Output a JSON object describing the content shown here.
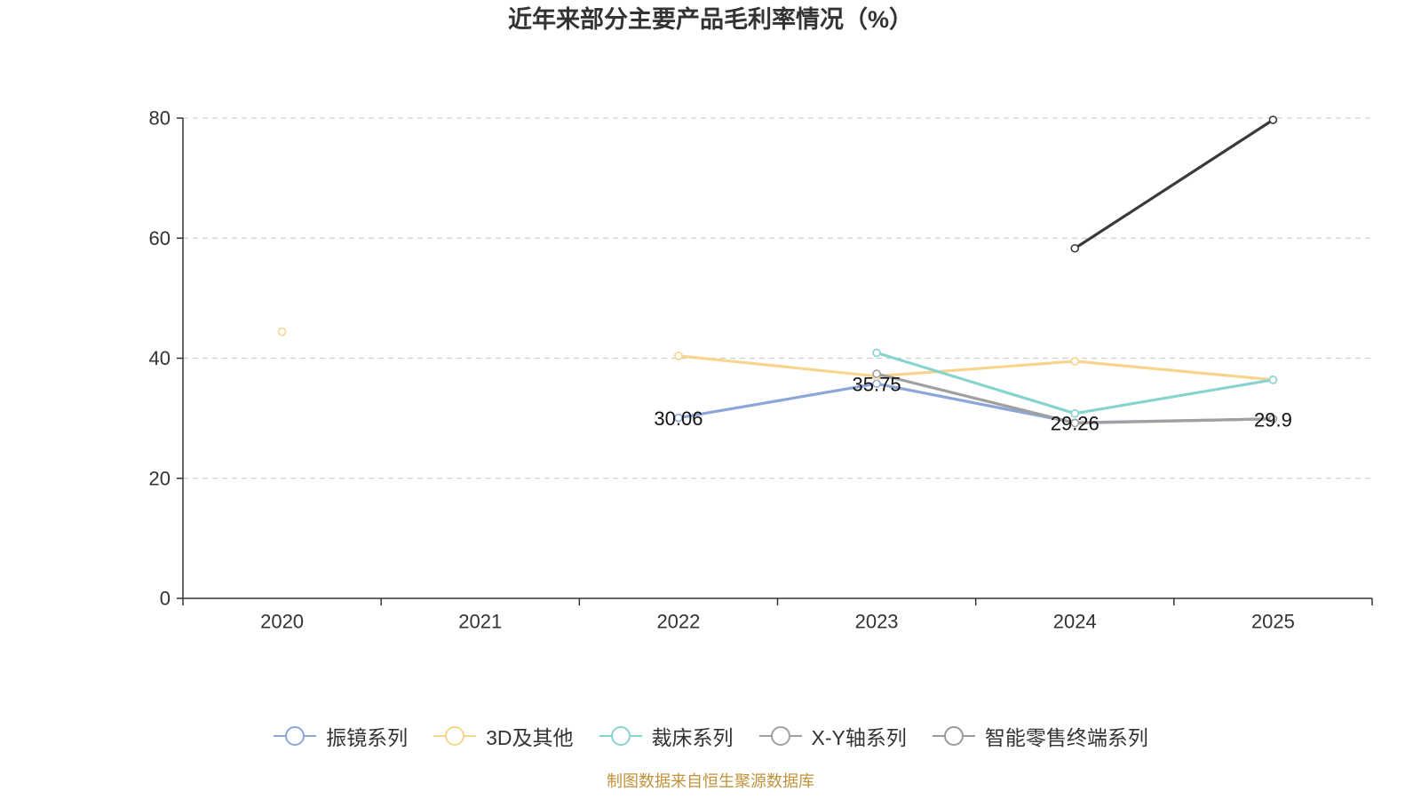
{
  "chart_data": {
    "type": "line",
    "title": "近年来部分主要产品毛利率情况（%）",
    "categories": [
      "2020",
      "2021",
      "2022",
      "2023",
      "2024",
      "2025"
    ],
    "ylim": [
      0,
      80
    ],
    "yticks": [
      0,
      20,
      40,
      60,
      80
    ],
    "ytick_labels": [
      "0",
      "20",
      "40",
      "60",
      "80"
    ],
    "grid": true,
    "legend_position": "bottom",
    "series": [
      {
        "name": "振镜系列",
        "color": "#8CA6D8",
        "values": [
          null,
          null,
          30.06,
          35.75,
          29.26,
          29.9
        ],
        "labels": [
          null,
          null,
          "30.06",
          "35.75",
          "29.26",
          "29.9"
        ]
      },
      {
        "name": "3D及其他",
        "color": "#F9D48E",
        "values": [
          44.4,
          null,
          40.4,
          37.0,
          39.5,
          36.4
        ]
      },
      {
        "name": "裁床系列",
        "color": "#86D3CF",
        "values": [
          null,
          null,
          null,
          40.9,
          30.8,
          36.4
        ]
      },
      {
        "name": "X-Y轴系列",
        "color": "#A0A0A0",
        "values": [
          null,
          null,
          null,
          37.4,
          29.2,
          29.9
        ]
      },
      {
        "name": "智能零售终端系列",
        "color": "#3A3A3A",
        "legend_color": "#9A9A9A",
        "values": [
          null,
          null,
          null,
          null,
          58.3,
          79.7
        ]
      }
    ]
  },
  "footer": {
    "source": "制图数据来自恒生聚源数据库",
    "color": "#C1923B"
  }
}
